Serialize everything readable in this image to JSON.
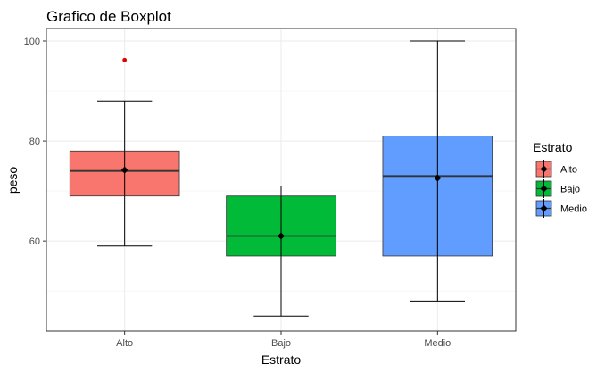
{
  "chart_data": {
    "type": "boxplot",
    "title": "Grafico de Boxplot",
    "xlabel": "Estrato",
    "ylabel": "peso",
    "categories": [
      "Alto",
      "Bajo",
      "Medio"
    ],
    "yticks": [
      60,
      80,
      100
    ],
    "ylim": [
      42,
      102.5
    ],
    "grid": true,
    "legend": {
      "title": "Estrato",
      "position": "right",
      "entries": [
        "Alto",
        "Bajo",
        "Medio"
      ]
    },
    "series": [
      {
        "category": "Alto",
        "min": 59,
        "q1": 69,
        "median": 74,
        "q3": 78,
        "max": 88,
        "mean": 74.2,
        "outliers": [
          96.2
        ],
        "color": "#f8766d"
      },
      {
        "category": "Bajo",
        "min": 45,
        "q1": 57,
        "median": 61,
        "q3": 69,
        "max": 71,
        "mean": 61,
        "outliers": [],
        "color": "#00ba38"
      },
      {
        "category": "Medio",
        "min": 48,
        "q1": 57,
        "median": 73,
        "q3": 81,
        "max": 100,
        "mean": 72.6,
        "outliers": [],
        "color": "#619cff"
      }
    ],
    "outlier_color": "#e00000"
  }
}
